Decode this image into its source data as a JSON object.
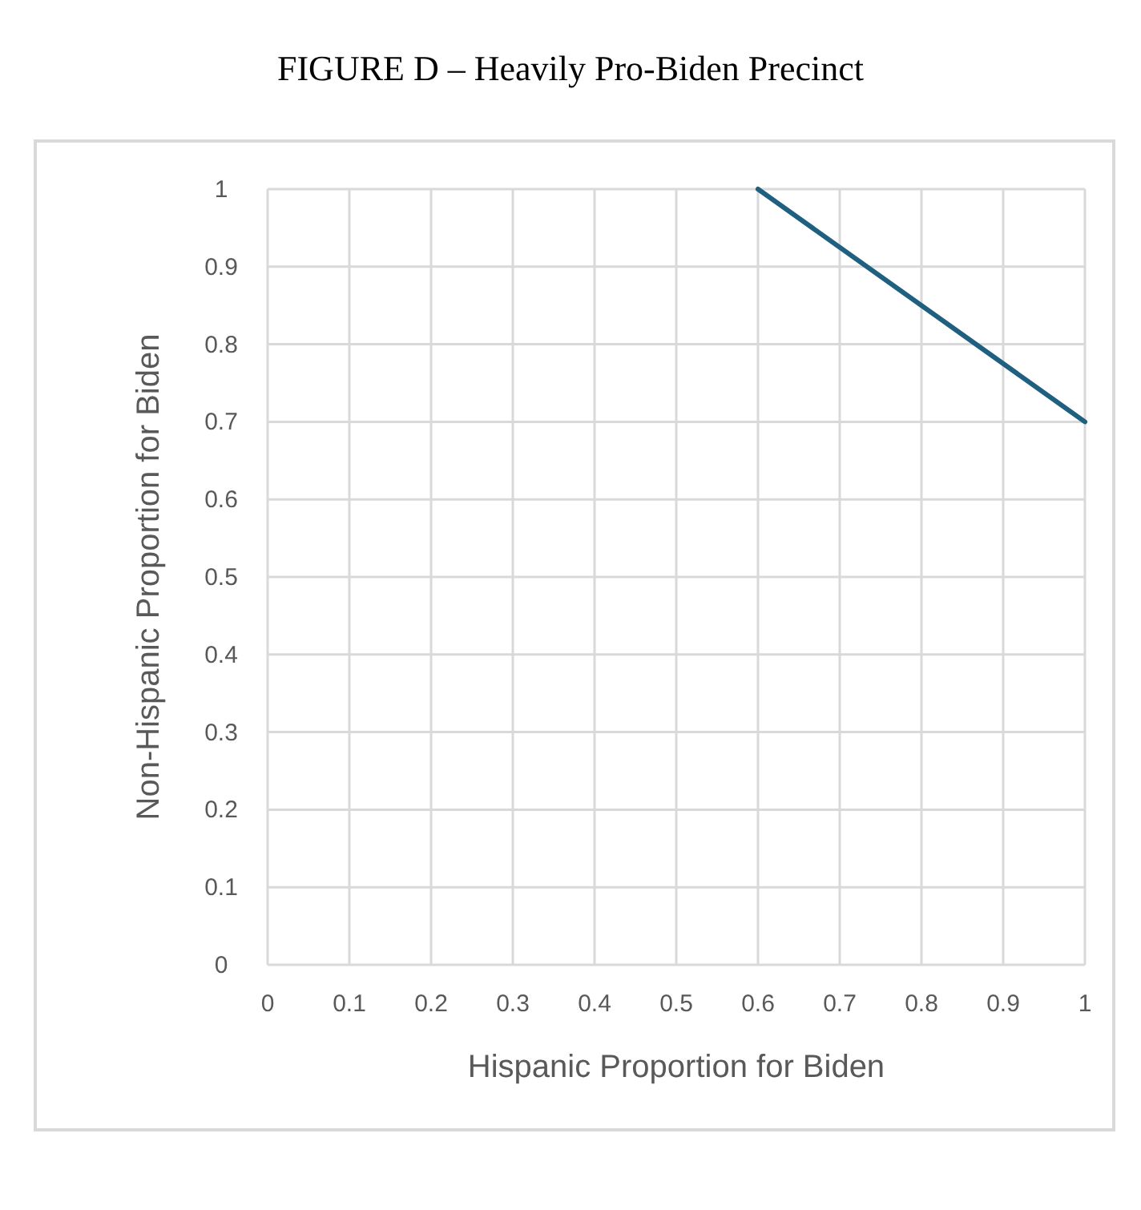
{
  "chart_data": {
    "type": "line",
    "title": "FIGURE D – Heavily Pro-Biden Precinct",
    "xlabel": "Hispanic Proportion for Biden",
    "ylabel": "Non-Hispanic Proportion for Biden",
    "x": [
      0.6,
      1
    ],
    "series": [
      {
        "color": "#1f5f80",
        "values": [
          1,
          0.7
        ]
      }
    ],
    "xlim": [
      0,
      1
    ],
    "ylim": [
      0,
      1
    ],
    "xticks": [
      0,
      0.1,
      0.2,
      0.3,
      0.4,
      0.5,
      0.6,
      0.7,
      0.8,
      0.9,
      1
    ],
    "yticks": [
      0,
      0.1,
      0.2,
      0.3,
      0.4,
      0.5,
      0.6,
      0.7,
      0.8,
      0.9,
      1
    ],
    "grid": true,
    "marker": "none",
    "line_style": "solid"
  }
}
